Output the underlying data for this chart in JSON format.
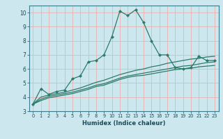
{
  "xlabel": "Humidex (Indice chaleur)",
  "bg_color": "#cce8ee",
  "grid_color_major": "#e8b0b0",
  "line_color": "#2d7a6a",
  "xlim": [
    -0.5,
    23.5
  ],
  "ylim": [
    3.0,
    10.5
  ],
  "xticks": [
    0,
    1,
    2,
    3,
    4,
    5,
    6,
    7,
    8,
    9,
    10,
    11,
    12,
    13,
    14,
    15,
    16,
    17,
    18,
    19,
    20,
    21,
    22,
    23
  ],
  "yticks": [
    3,
    4,
    5,
    6,
    7,
    8,
    9,
    10
  ],
  "line1_x": [
    0,
    1,
    2,
    3,
    4,
    5,
    6,
    7,
    8,
    9,
    10,
    11,
    12,
    13,
    14,
    15,
    16,
    17,
    18,
    19,
    20,
    21,
    22,
    23
  ],
  "line1_y": [
    3.5,
    4.6,
    4.2,
    4.4,
    4.5,
    5.3,
    5.5,
    6.5,
    6.6,
    7.0,
    8.3,
    10.1,
    9.8,
    10.2,
    9.3,
    8.0,
    7.0,
    7.0,
    6.1,
    6.0,
    6.1,
    6.9,
    6.6,
    6.6
  ],
  "line2_x": [
    0,
    1,
    2,
    3,
    4,
    5,
    6,
    7,
    8,
    9,
    10,
    11,
    12,
    13,
    14,
    15,
    16,
    17,
    18,
    19,
    20,
    21,
    22,
    23
  ],
  "line2_y": [
    3.5,
    4.0,
    4.15,
    4.25,
    4.35,
    4.5,
    4.65,
    4.85,
    5.05,
    5.2,
    5.4,
    5.6,
    5.75,
    5.9,
    6.0,
    6.15,
    6.25,
    6.4,
    6.5,
    6.6,
    6.7,
    6.75,
    6.85,
    6.9
  ],
  "line3_x": [
    0,
    1,
    2,
    3,
    4,
    5,
    6,
    7,
    8,
    9,
    10,
    11,
    12,
    13,
    14,
    15,
    16,
    17,
    18,
    19,
    20,
    21,
    22,
    23
  ],
  "line3_y": [
    3.5,
    3.85,
    4.05,
    4.15,
    4.25,
    4.35,
    4.5,
    4.65,
    4.85,
    4.95,
    5.15,
    5.35,
    5.5,
    5.6,
    5.7,
    5.8,
    5.9,
    6.0,
    6.1,
    6.2,
    6.25,
    6.35,
    6.45,
    6.5
  ],
  "line4_x": [
    0,
    1,
    2,
    3,
    4,
    5,
    6,
    7,
    8,
    9,
    10,
    11,
    12,
    13,
    14,
    15,
    16,
    17,
    18,
    19,
    20,
    21,
    22,
    23
  ],
  "line4_y": [
    3.5,
    3.75,
    3.95,
    4.05,
    4.15,
    4.25,
    4.4,
    4.55,
    4.75,
    4.85,
    5.05,
    5.25,
    5.4,
    5.5,
    5.55,
    5.65,
    5.75,
    5.85,
    5.95,
    6.0,
    6.05,
    6.15,
    6.2,
    6.25
  ]
}
